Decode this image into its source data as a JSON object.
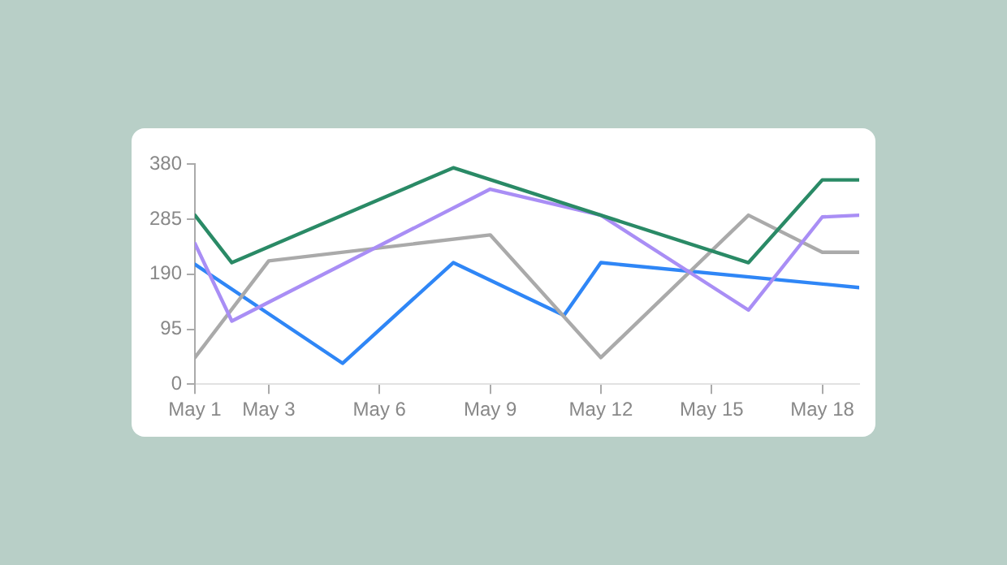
{
  "chart_data": {
    "type": "line",
    "xlim": [
      "--05-01",
      "--05-19"
    ],
    "xticks": [
      {
        "value": "--05-01",
        "label": "May 1"
      },
      {
        "value": "--05-03",
        "label": "May 3"
      },
      {
        "value": "--05-06",
        "label": "May 6"
      },
      {
        "value": "--05-09",
        "label": "May 9"
      },
      {
        "value": "--05-12",
        "label": "May 12"
      },
      {
        "value": "--05-15",
        "label": "May 15"
      },
      {
        "value": "--05-18",
        "label": "May 18"
      }
    ],
    "ylim": [
      0,
      380
    ],
    "yticks": [
      0,
      95,
      190,
      285,
      380
    ],
    "grid": false,
    "legend": false,
    "marker": "none",
    "line_style": "solid",
    "series": [
      {
        "color": "#2a8a66",
        "x": [
          "--05-01",
          "--05-02",
          "--05-08",
          "--05-16",
          "--05-18",
          "--05-19"
        ],
        "values": [
          292,
          210,
          374,
          210,
          353,
          353
        ]
      },
      {
        "color": "#a98ef5",
        "x": [
          "--05-01",
          "--05-02",
          "--05-09",
          "--05-12",
          "--05-16",
          "--05-18",
          "--05-19"
        ],
        "values": [
          243,
          109,
          337,
          292,
          128,
          289,
          292
        ]
      },
      {
        "color": "#aaaaaa",
        "x": [
          "--05-01",
          "--05-03",
          "--05-09",
          "--05-12",
          "--05-16",
          "--05-18",
          "--05-19"
        ],
        "values": [
          46,
          213,
          258,
          46,
          292,
          228,
          228
        ]
      },
      {
        "color": "#2f86f6",
        "x": [
          "--05-01",
          "--05-05",
          "--05-08",
          "--05-11",
          "--05-12",
          "--05-19"
        ],
        "values": [
          207,
          36,
          210,
          119,
          210,
          167
        ]
      }
    ]
  }
}
